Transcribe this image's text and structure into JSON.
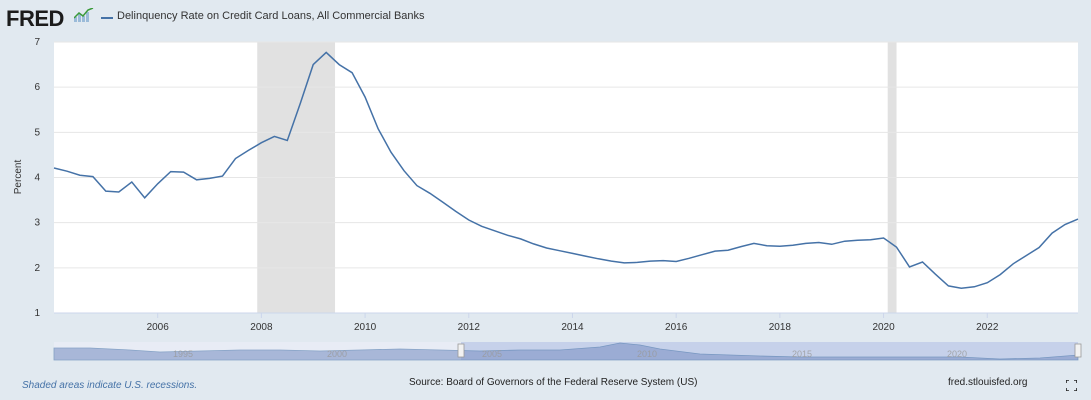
{
  "header": {
    "logo_text": "FRED",
    "logo_icon": "fred-chart-icon",
    "series_title": "Delinquency Rate on Credit Card Loans, All Commercial Banks"
  },
  "footer": {
    "recession_note": "Shaded areas indicate U.S. recessions.",
    "source": "Source: Board of Governors of the Federal Reserve System (US)",
    "site": "fred.stlouisfed.org",
    "fullscreen_icon": "fullscreen-icon"
  },
  "colors": {
    "line": "#4572a7",
    "recession": "#e1e1e1",
    "navigator_fill": "#c0cce8",
    "navigator_bg": "#e8ecf5"
  },
  "navigator": {
    "tick_labels": [
      "1995",
      "2000",
      "2005",
      "2010",
      "2015",
      "2020"
    ]
  },
  "chart_data": {
    "type": "line",
    "title": "Delinquency Rate on Credit Card Loans, All Commercial Banks",
    "xlabel": "",
    "ylabel": "Percent",
    "xlim": [
      2004.0,
      2023.75
    ],
    "ylim": [
      1,
      7
    ],
    "yticks": [
      1,
      2,
      3,
      4,
      5,
      6,
      7
    ],
    "xticks": [
      2006,
      2008,
      2010,
      2012,
      2014,
      2016,
      2018,
      2020,
      2022
    ],
    "grid": true,
    "recessions": [
      [
        2007.92,
        2009.42
      ],
      [
        2020.08,
        2020.25
      ]
    ],
    "series": [
      {
        "name": "Delinquency Rate on Credit Card Loans, All Commercial Banks",
        "x": [
          2004.0,
          2004.25,
          2004.5,
          2004.75,
          2005.0,
          2005.25,
          2005.5,
          2005.75,
          2006.0,
          2006.25,
          2006.5,
          2006.75,
          2007.0,
          2007.25,
          2007.5,
          2007.75,
          2008.0,
          2008.25,
          2008.5,
          2008.75,
          2009.0,
          2009.25,
          2009.5,
          2009.75,
          2010.0,
          2010.25,
          2010.5,
          2010.75,
          2011.0,
          2011.25,
          2011.5,
          2011.75,
          2012.0,
          2012.25,
          2012.5,
          2012.75,
          2013.0,
          2013.25,
          2013.5,
          2013.75,
          2014.0,
          2014.25,
          2014.5,
          2014.75,
          2015.0,
          2015.25,
          2015.5,
          2015.75,
          2016.0,
          2016.25,
          2016.5,
          2016.75,
          2017.0,
          2017.25,
          2017.5,
          2017.75,
          2018.0,
          2018.25,
          2018.5,
          2018.75,
          2019.0,
          2019.25,
          2019.5,
          2019.75,
          2020.0,
          2020.25,
          2020.5,
          2020.75,
          2021.0,
          2021.25,
          2021.5,
          2021.75,
          2022.0,
          2022.25,
          2022.5,
          2022.75,
          2023.0,
          2023.25,
          2023.5,
          2023.75
        ],
        "values": [
          4.21,
          4.14,
          4.05,
          4.02,
          3.7,
          3.68,
          3.9,
          3.55,
          3.86,
          4.13,
          4.12,
          3.95,
          3.98,
          4.03,
          4.42,
          4.6,
          4.77,
          4.91,
          4.82,
          5.64,
          6.5,
          6.77,
          6.5,
          6.32,
          5.78,
          5.08,
          4.56,
          4.15,
          3.82,
          3.65,
          3.45,
          3.25,
          3.06,
          2.92,
          2.82,
          2.72,
          2.64,
          2.53,
          2.44,
          2.38,
          2.32,
          2.26,
          2.2,
          2.15,
          2.11,
          2.12,
          2.15,
          2.16,
          2.14,
          2.21,
          2.29,
          2.37,
          2.39,
          2.47,
          2.54,
          2.49,
          2.48,
          2.5,
          2.54,
          2.56,
          2.52,
          2.59,
          2.61,
          2.62,
          2.66,
          2.46,
          2.02,
          2.13,
          1.86,
          1.6,
          1.55,
          1.58,
          1.67,
          1.85,
          2.09,
          2.27,
          2.45,
          2.77,
          2.96,
          3.08
        ]
      }
    ]
  }
}
